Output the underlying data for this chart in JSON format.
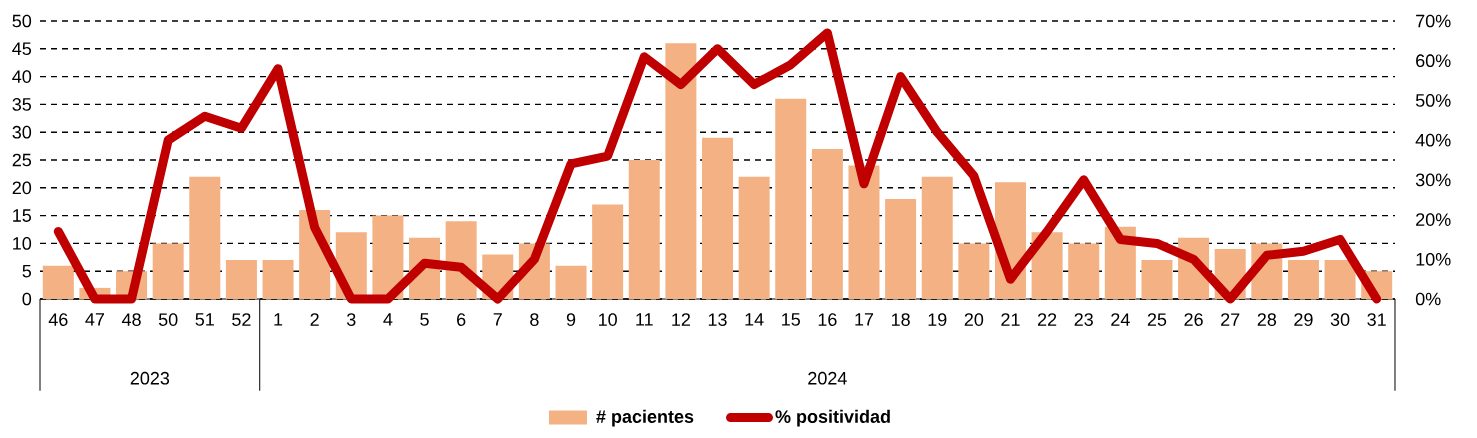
{
  "chart_data": {
    "type": "bar",
    "categories": [
      "46",
      "47",
      "48",
      "50",
      "51",
      "52",
      "1",
      "2",
      "3",
      "4",
      "5",
      "6",
      "7",
      "8",
      "9",
      "10",
      "11",
      "12",
      "13",
      "14",
      "15",
      "16",
      "17",
      "18",
      "19",
      "20",
      "21",
      "22",
      "23",
      "24",
      "25",
      "26",
      "27",
      "28",
      "29",
      "30",
      "31"
    ],
    "series": [
      {
        "name": "# pacientes",
        "color": "#f4b183",
        "values": [
          6,
          2,
          5,
          10,
          22,
          7,
          7,
          16,
          12,
          15,
          11,
          14,
          8,
          10,
          6,
          17,
          25,
          46,
          29,
          22,
          36,
          27,
          24,
          18,
          22,
          10,
          21,
          12,
          10,
          13,
          7,
          11,
          9,
          10,
          7,
          7,
          5
        ]
      },
      {
        "name": "% positividad",
        "type": "line",
        "axis": "y2",
        "color": "#c00000",
        "values": [
          17,
          0,
          0,
          40,
          46,
          43,
          58,
          18,
          0,
          0,
          9,
          8,
          0,
          10,
          34,
          36,
          61,
          54,
          63,
          54,
          59,
          67,
          29,
          56,
          42,
          31,
          5,
          17,
          30,
          15,
          14,
          10,
          0,
          11,
          12,
          15,
          0
        ]
      }
    ],
    "ylim": [
      0,
      50
    ],
    "yticks": [
      0,
      5,
      10,
      15,
      20,
      25,
      30,
      35,
      40,
      45,
      50
    ],
    "y2lim": [
      0,
      70
    ],
    "y2ticks": [
      {
        "value": 0,
        "label": "0%"
      },
      {
        "value": 10,
        "label": "10%"
      },
      {
        "value": 20,
        "label": "20%"
      },
      {
        "value": 30,
        "label": "30%"
      },
      {
        "value": 40,
        "label": "40%"
      },
      {
        "value": 50,
        "label": "50%"
      },
      {
        "value": 60,
        "label": "60%"
      },
      {
        "value": 70,
        "label": "70%"
      }
    ],
    "annotations": [
      "2023",
      "2024"
    ],
    "grid": "y",
    "legend": "bottom",
    "line_style": "solid",
    "marker": "none"
  }
}
